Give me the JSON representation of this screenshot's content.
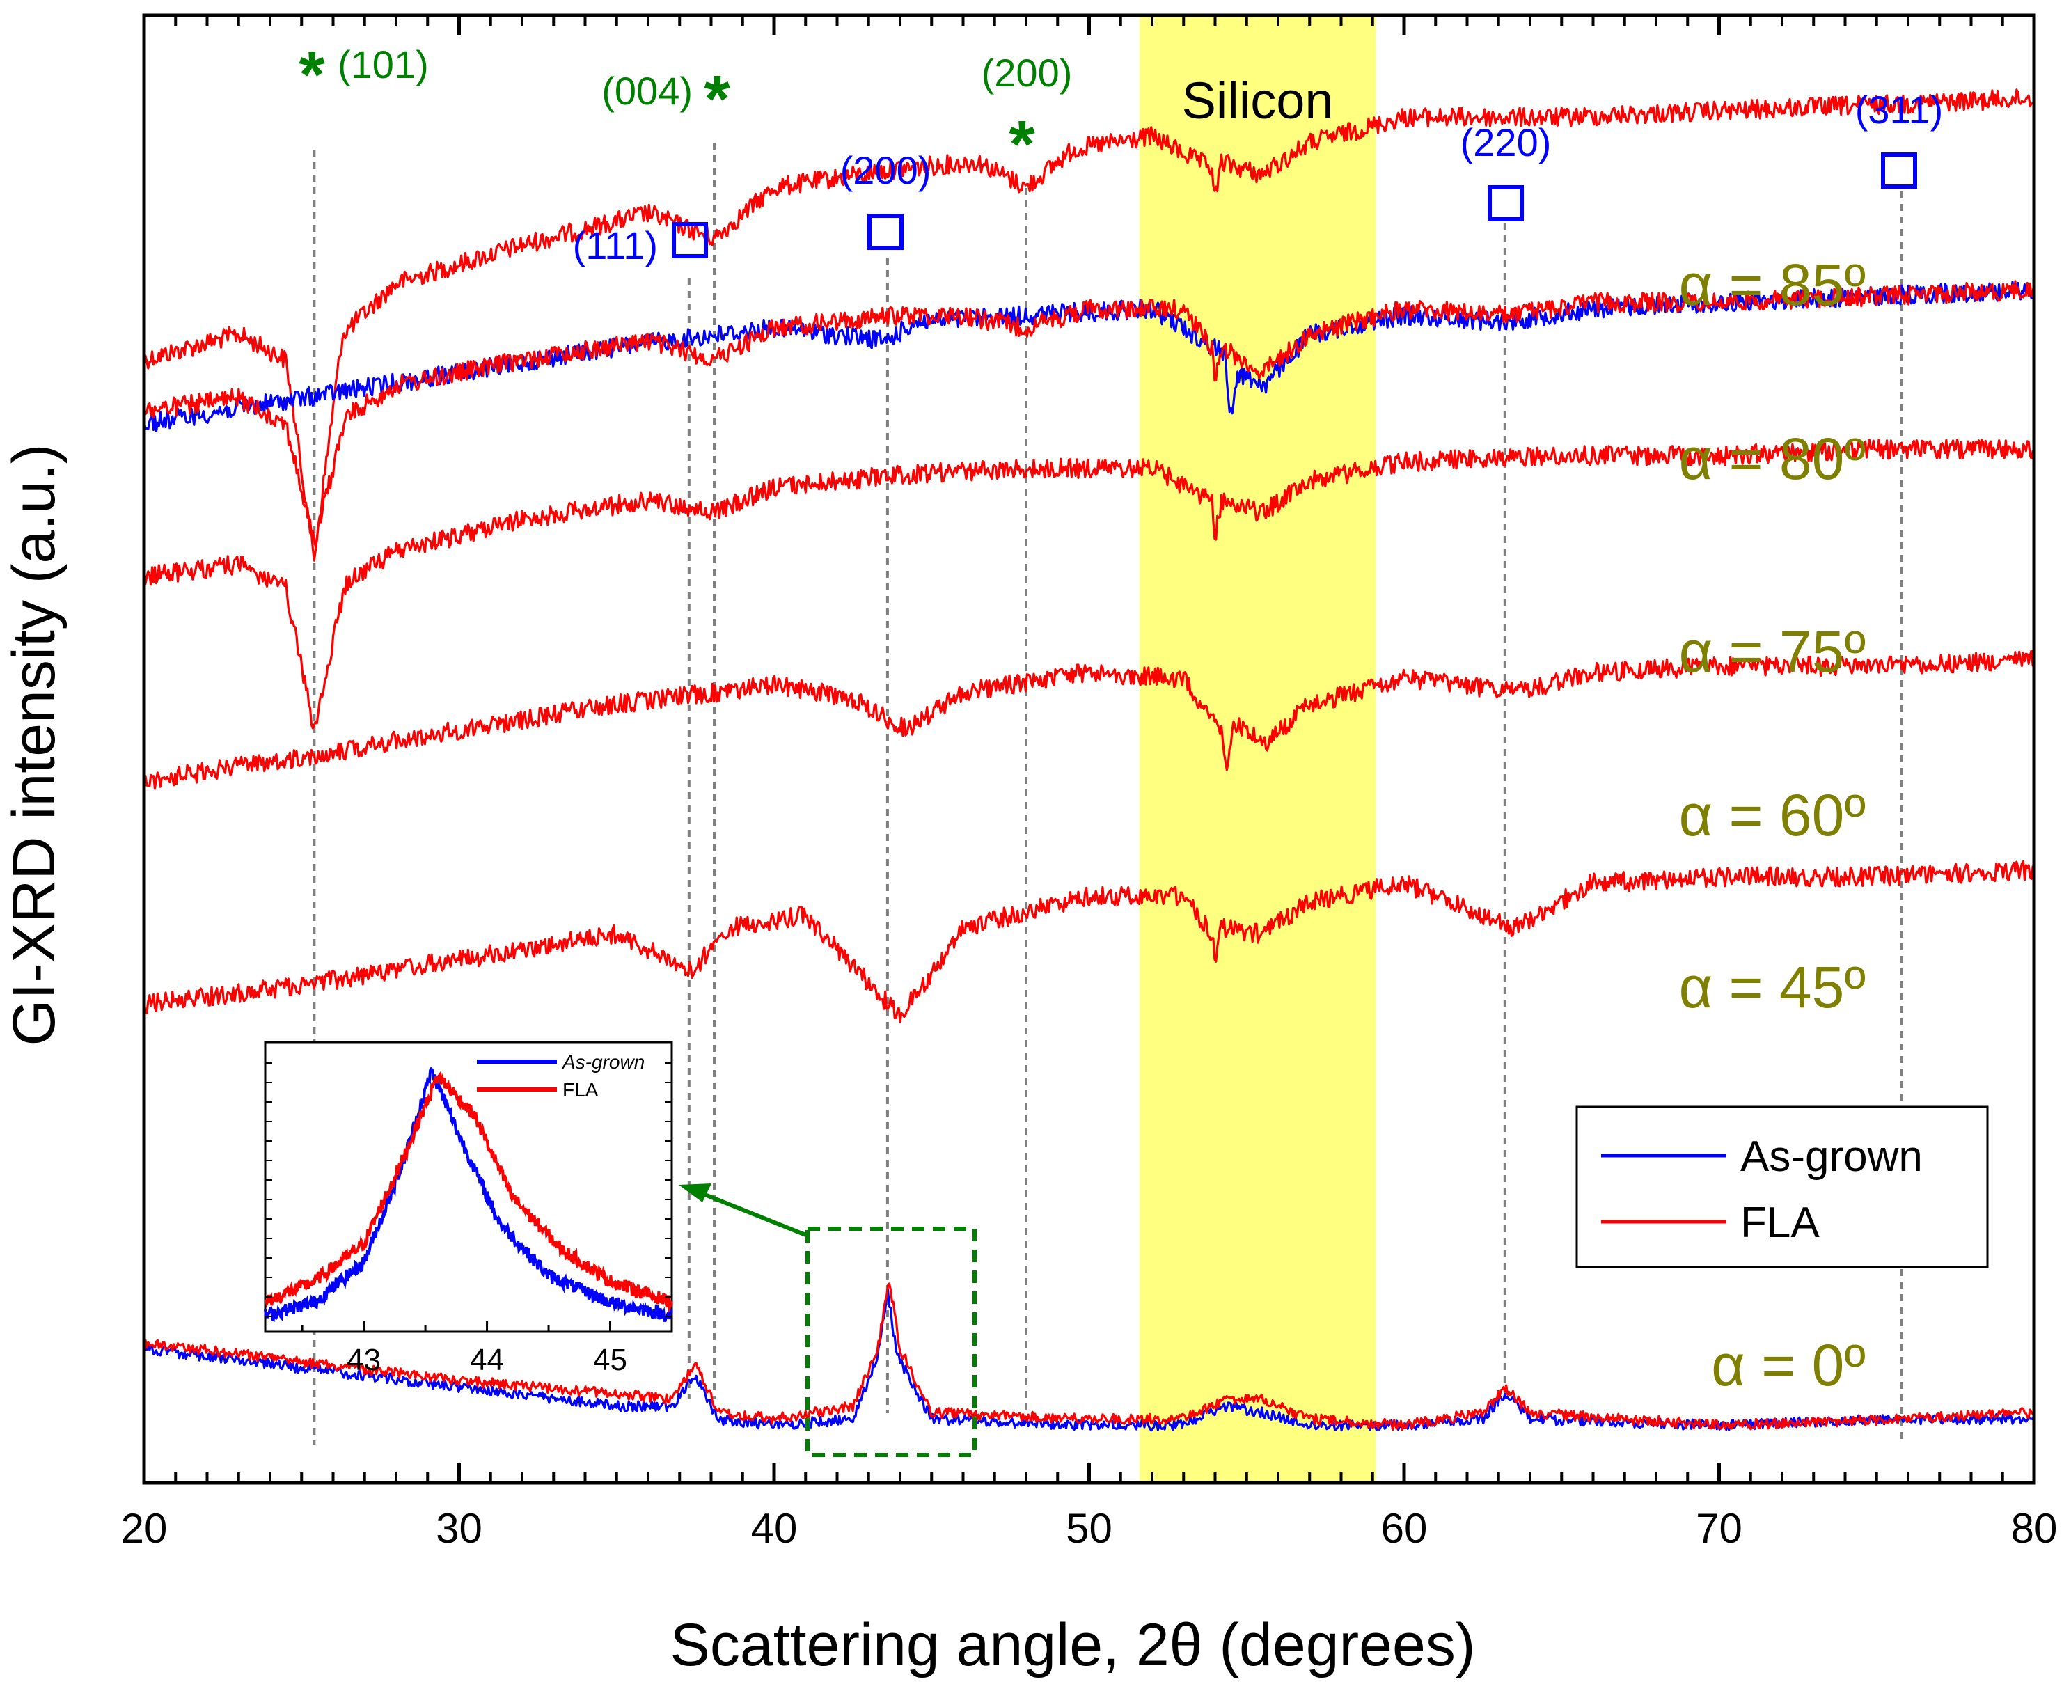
{
  "chart_data": {
    "type": "line",
    "title": "",
    "xlabel": "Scattering angle, 2θ (degrees)",
    "ylabel": "GI-XRD intensity (a.u.)",
    "xlim": [
      20,
      80
    ],
    "x_ticks": [
      "20",
      "30",
      "40",
      "50",
      "60",
      "70",
      "80"
    ],
    "y_ticks": [],
    "grid": false,
    "shaded_region": {
      "label": "Silicon",
      "x_range": [
        51.6,
        59.1
      ],
      "color": "#ffff80"
    },
    "anatase_peaks": [
      {
        "label": "(101)",
        "x": 25.4
      },
      {
        "label": "(004)",
        "x": 38.1
      },
      {
        "label": "(200)",
        "x": 48.0
      }
    ],
    "rutile_peaks": [
      {
        "label": "(111)",
        "x": 37.3
      },
      {
        "label": "(200)",
        "x": 43.6
      },
      {
        "label": "(220)",
        "x": 63.2
      },
      {
        "label": "(311)",
        "x": 75.8
      }
    ],
    "anatase_marker": "*",
    "angle_labels": [
      "α = 85º",
      "α = 80º",
      "α = 75º",
      "α = 60º",
      "α = 45º",
      "α = 0º"
    ],
    "traces": [
      {
        "label": "α = 85º",
        "series": [
          {
            "name": "FLA",
            "color": "#ff0000",
            "points": [
              [
                20,
                0.74
              ],
              [
                23,
                0.7
              ],
              [
                24.5,
                0.74
              ],
              [
                25.4,
                1.05
              ],
              [
                26.3,
                0.7
              ],
              [
                28,
                0.62
              ],
              [
                32,
                0.56
              ],
              [
                36,
                0.51
              ],
              [
                38.1,
                0.55
              ],
              [
                40,
                0.47
              ],
              [
                44,
                0.44
              ],
              [
                46.5,
                0.43
              ],
              [
                48,
                0.47
              ],
              [
                49.5,
                0.41
              ],
              [
                52,
                0.39
              ],
              [
                53.9,
                0.44
              ],
              [
                54,
                0.49
              ],
              [
                54.2,
                0.43
              ],
              [
                55.5,
                0.45
              ],
              [
                57,
                0.4
              ],
              [
                60,
                0.36
              ],
              [
                65,
                0.36
              ],
              [
                70,
                0.35
              ],
              [
                75,
                0.34
              ],
              [
                80,
                0.33
              ]
            ]
          }
        ]
      },
      {
        "label": "α = 80º",
        "series": [
          {
            "name": "As-grown",
            "color": "#0000ff",
            "points": [
              [
                20,
                0.84
              ],
              [
                25,
                0.8
              ],
              [
                30,
                0.76
              ],
              [
                35,
                0.72
              ],
              [
                40,
                0.69
              ],
              [
                43.6,
                0.71
              ],
              [
                44.5,
                0.68
              ],
              [
                48,
                0.67
              ],
              [
                52,
                0.66
              ],
              [
                54.3,
                0.73
              ],
              [
                54.5,
                0.83
              ],
              [
                54.7,
                0.76
              ],
              [
                55.6,
                0.78
              ],
              [
                57,
                0.7
              ],
              [
                60,
                0.67
              ],
              [
                63.2,
                0.68
              ],
              [
                66,
                0.66
              ],
              [
                70,
                0.65
              ],
              [
                75,
                0.64
              ],
              [
                80,
                0.63
              ]
            ]
          },
          {
            "name": "FLA",
            "color": "#ff0000",
            "points": [
              [
                20,
                0.82
              ],
              [
                23,
                0.8
              ],
              [
                24.5,
                0.84
              ],
              [
                25.4,
                1.03
              ],
              [
                26.4,
                0.83
              ],
              [
                28,
                0.78
              ],
              [
                32,
                0.74
              ],
              [
                36,
                0.71
              ],
              [
                38.1,
                0.74
              ],
              [
                40,
                0.69
              ],
              [
                44,
                0.67
              ],
              [
                46,
                0.67
              ],
              [
                48,
                0.69
              ],
              [
                50,
                0.66
              ],
              [
                53,
                0.66
              ],
              [
                53.9,
                0.72
              ],
              [
                54,
                0.78
              ],
              [
                54.2,
                0.72
              ],
              [
                55.5,
                0.76
              ],
              [
                57,
                0.7
              ],
              [
                60,
                0.66
              ],
              [
                63.2,
                0.67
              ],
              [
                66,
                0.65
              ],
              [
                70,
                0.65
              ],
              [
                75,
                0.64
              ],
              [
                80,
                0.63
              ]
            ]
          }
        ]
      },
      {
        "label": "α = 75º",
        "series": [
          {
            "name": "FLA",
            "color": "#ff0000",
            "points": [
              [
                20,
                1.08
              ],
              [
                23,
                1.06
              ],
              [
                24.5,
                1.1
              ],
              [
                25.4,
                1.32
              ],
              [
                26.4,
                1.09
              ],
              [
                28,
                1.04
              ],
              [
                32,
                0.99
              ],
              [
                36,
                0.96
              ],
              [
                38.1,
                0.98
              ],
              [
                40,
                0.94
              ],
              [
                44,
                0.92
              ],
              [
                48,
                0.91
              ],
              [
                52,
                0.91
              ],
              [
                53.9,
                0.96
              ],
              [
                54,
                1.02
              ],
              [
                54.2,
                0.96
              ],
              [
                55.5,
                0.98
              ],
              [
                57,
                0.93
              ],
              [
                60,
                0.9
              ],
              [
                65,
                0.89
              ],
              [
                70,
                0.89
              ],
              [
                75,
                0.88
              ],
              [
                80,
                0.88
              ]
            ]
          }
        ]
      },
      {
        "label": "α = 60º",
        "series": [
          {
            "name": "FLA",
            "color": "#ff0000",
            "points": [
              [
                20,
                1.4
              ],
              [
                25.4,
                1.36
              ],
              [
                30,
                1.32
              ],
              [
                35,
                1.28
              ],
              [
                40,
                1.25
              ],
              [
                42.5,
                1.27
              ],
              [
                44.2,
                1.32
              ],
              [
                46,
                1.26
              ],
              [
                50,
                1.23
              ],
              [
                53,
                1.24
              ],
              [
                54.2,
                1.32
              ],
              [
                54.4,
                1.38
              ],
              [
                54.6,
                1.31
              ],
              [
                55.6,
                1.34
              ],
              [
                57,
                1.28
              ],
              [
                60,
                1.24
              ],
              [
                63.8,
                1.26
              ],
              [
                66,
                1.23
              ],
              [
                70,
                1.22
              ],
              [
                75,
                1.22
              ],
              [
                80,
                1.21
              ]
            ]
          }
        ]
      },
      {
        "label": "α = 45º",
        "series": [
          {
            "name": "FLA",
            "color": "#ff0000",
            "points": [
              [
                20,
                1.75
              ],
              [
                25,
                1.72
              ],
              [
                30,
                1.68
              ],
              [
                35,
                1.64
              ],
              [
                37.4,
                1.7
              ],
              [
                38.5,
                1.63
              ],
              [
                41,
                1.61
              ],
              [
                44,
                1.77
              ],
              [
                46,
                1.63
              ],
              [
                50,
                1.58
              ],
              [
                53,
                1.58
              ],
              [
                53.9,
                1.64
              ],
              [
                54,
                1.69
              ],
              [
                54.2,
                1.63
              ],
              [
                55.5,
                1.64
              ],
              [
                57,
                1.59
              ],
              [
                60,
                1.56
              ],
              [
                63.5,
                1.63
              ],
              [
                66,
                1.56
              ],
              [
                70,
                1.55
              ],
              [
                75,
                1.55
              ],
              [
                80,
                1.54
              ]
            ]
          }
        ]
      },
      {
        "label": "α = 0º",
        "series": [
          {
            "name": "As-grown",
            "color": "#0000ff",
            "points": [
              [
                20,
                2.29
              ],
              [
                25,
                2.32
              ],
              [
                30,
                2.35
              ],
              [
                35,
                2.38
              ],
              [
                36.8,
                2.38
              ],
              [
                37.5,
                2.33
              ],
              [
                38.2,
                2.4
              ],
              [
                40,
                2.41
              ],
              [
                42.5,
                2.4
              ],
              [
                43.3,
                2.3
              ],
              [
                43.6,
                2.2
              ],
              [
                43.9,
                2.3
              ],
              [
                45,
                2.4
              ],
              [
                50,
                2.41
              ],
              [
                53,
                2.41
              ],
              [
                54.3,
                2.38
              ],
              [
                55.5,
                2.39
              ],
              [
                57,
                2.41
              ],
              [
                60,
                2.41
              ],
              [
                62.5,
                2.4
              ],
              [
                63.2,
                2.36
              ],
              [
                64,
                2.4
              ],
              [
                70,
                2.41
              ],
              [
                75.8,
                2.4
              ],
              [
                80,
                2.4
              ]
            ]
          },
          {
            "name": "FLA",
            "color": "#ff0000",
            "points": [
              [
                20,
                2.28
              ],
              [
                25,
                2.31
              ],
              [
                30,
                2.34
              ],
              [
                35,
                2.36
              ],
              [
                36.8,
                2.37
              ],
              [
                37.5,
                2.31
              ],
              [
                38.2,
                2.39
              ],
              [
                40,
                2.4
              ],
              [
                42.5,
                2.38
              ],
              [
                43.3,
                2.29
              ],
              [
                43.65,
                2.18
              ],
              [
                44.0,
                2.29
              ],
              [
                45,
                2.39
              ],
              [
                50,
                2.4
              ],
              [
                53,
                2.4
              ],
              [
                54.3,
                2.37
              ],
              [
                55.5,
                2.37
              ],
              [
                57,
                2.4
              ],
              [
                60,
                2.41
              ],
              [
                62.5,
                2.39
              ],
              [
                63.2,
                2.35
              ],
              [
                64,
                2.39
              ],
              [
                70,
                2.41
              ],
              [
                75.8,
                2.4
              ],
              [
                80,
                2.39
              ]
            ]
          }
        ]
      }
    ],
    "legend": {
      "position": "bottom-right",
      "entries": [
        {
          "name": "As-grown",
          "color": "#0000ff"
        },
        {
          "name": "FLA",
          "color": "#ff0000"
        }
      ]
    },
    "inset": {
      "xlim": [
        42.2,
        45.5
      ],
      "x_ticks": [
        "43",
        "44",
        "45"
      ],
      "legend": [
        {
          "name": "As-grown",
          "color": "#0000ff"
        },
        {
          "name": "FLA",
          "color": "#ff0000"
        }
      ],
      "series": [
        {
          "name": "As-grown",
          "color": "#0000ff",
          "points": [
            [
              42.2,
              0.05
            ],
            [
              42.6,
              0.1
            ],
            [
              43.0,
              0.25
            ],
            [
              43.3,
              0.6
            ],
            [
              43.55,
              0.97
            ],
            [
              43.8,
              0.7
            ],
            [
              44.1,
              0.4
            ],
            [
              44.5,
              0.2
            ],
            [
              45.0,
              0.1
            ],
            [
              45.5,
              0.05
            ]
          ]
        },
        {
          "name": "FLA",
          "color": "#ff0000",
          "points": [
            [
              42.2,
              0.1
            ],
            [
              42.6,
              0.18
            ],
            [
              43.0,
              0.32
            ],
            [
              43.3,
              0.62
            ],
            [
              43.6,
              0.95
            ],
            [
              43.9,
              0.8
            ],
            [
              44.2,
              0.5
            ],
            [
              44.6,
              0.3
            ],
            [
              45.0,
              0.18
            ],
            [
              45.5,
              0.1
            ]
          ]
        }
      ]
    }
  }
}
